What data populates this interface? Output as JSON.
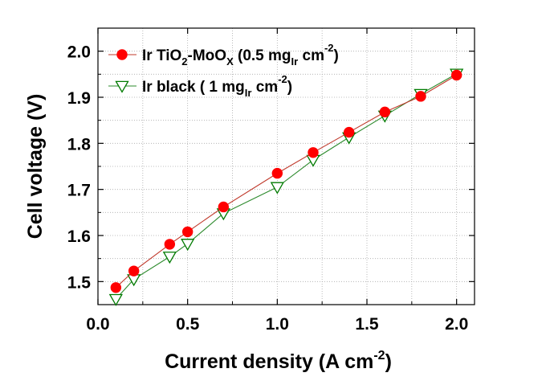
{
  "chart_data": {
    "type": "line",
    "xlabel": "Current density (A cm",
    "xlabel_sup": "-2",
    "xlabel_close": ")",
    "ylabel": "Cell voltage (V)",
    "xlim": [
      0.0,
      2.1
    ],
    "ylim": [
      1.45,
      2.05
    ],
    "xticks": [
      "0.0",
      "0.5",
      "1.0",
      "1.5",
      "2.0"
    ],
    "yticks": [
      "1.5",
      "1.6",
      "1.7",
      "1.8",
      "1.9",
      "2.0"
    ],
    "grid": true,
    "legend_position": "top-left",
    "series": [
      {
        "name": "Ir TiO2-MoOx (0.5 mgIr cm-2)",
        "legend_parts": [
          "Ir TiO",
          "2",
          "-MoO",
          "X",
          " (0.5 mg",
          "Ir",
          " cm",
          "-2",
          ")"
        ],
        "marker": "circle",
        "marker_color": "#ff0000",
        "line_color": "#c0392b",
        "x": [
          0.1,
          0.2,
          0.4,
          0.5,
          0.7,
          1.0,
          1.2,
          1.4,
          1.6,
          1.8,
          2.0
        ],
        "y": [
          1.487,
          1.523,
          1.581,
          1.608,
          1.662,
          1.735,
          1.78,
          1.824,
          1.868,
          1.902,
          1.948
        ]
      },
      {
        "name": "Ir black ( 1 mgIr cm-2)",
        "legend_parts": [
          "Ir black ( 1 mg",
          "Ir",
          " cm",
          "-2",
          ")"
        ],
        "marker": "triangle-down",
        "marker_color": "#007a00",
        "line_color": "#2e8b2e",
        "x": [
          0.1,
          0.2,
          0.4,
          0.5,
          0.7,
          1.0,
          1.2,
          1.4,
          1.6,
          1.8,
          2.0
        ],
        "y": [
          1.462,
          1.505,
          1.554,
          1.582,
          1.648,
          1.705,
          1.764,
          1.813,
          1.86,
          1.907,
          1.951
        ]
      }
    ]
  }
}
